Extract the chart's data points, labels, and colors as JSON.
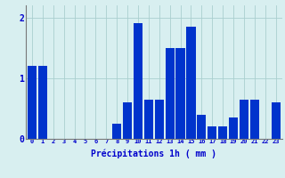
{
  "hours": [
    0,
    1,
    2,
    3,
    4,
    5,
    6,
    7,
    8,
    9,
    10,
    11,
    12,
    13,
    14,
    15,
    16,
    17,
    18,
    19,
    20,
    21,
    22,
    23
  ],
  "values": [
    1.2,
    1.2,
    0,
    0,
    0,
    0,
    0,
    0,
    0.25,
    0.6,
    1.9,
    0.65,
    0.65,
    1.5,
    1.5,
    1.85,
    0.4,
    0.2,
    0.2,
    0.35,
    0.65,
    0.65,
    0,
    0.6
  ],
  "bar_color": "#0033cc",
  "bg_color": "#d8eff0",
  "grid_color": "#aacfcf",
  "xlabel": "Précipitations 1h ( mm )",
  "xlabel_color": "#0000cc",
  "tick_color": "#0000cc",
  "ylim": [
    0,
    2.2
  ],
  "yticks": [
    0,
    1,
    2
  ],
  "bar_width": 0.85
}
